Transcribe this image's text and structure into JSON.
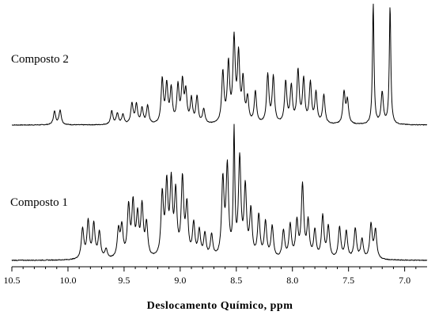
{
  "chart_data": {
    "type": "line",
    "title": "",
    "xlabel": "Deslocamento Químico, ppm",
    "ylabel": "",
    "xlim": [
      10.5,
      6.8
    ],
    "x_reversed": true,
    "grid": false,
    "x_ticks": [
      {
        "value": 10.5,
        "label": "10.5"
      },
      {
        "value": 10.0,
        "label": "10.0"
      },
      {
        "value": 9.5,
        "label": "9.5"
      },
      {
        "value": 9.0,
        "label": "9.0"
      },
      {
        "value": 8.5,
        "label": "8.5"
      },
      {
        "value": 8.0,
        "label": "8.0"
      },
      {
        "value": 7.5,
        "label": "7.5"
      },
      {
        "value": 7.0,
        "label": "7.0"
      }
    ],
    "series": [
      {
        "name": "Composto 2",
        "peaks": [
          [
            10.12,
            0.11
          ],
          [
            10.07,
            0.12
          ],
          [
            9.61,
            0.11
          ],
          [
            9.56,
            0.09
          ],
          [
            9.51,
            0.08
          ],
          [
            9.43,
            0.17
          ],
          [
            9.39,
            0.16
          ],
          [
            9.34,
            0.13
          ],
          [
            9.29,
            0.15
          ],
          [
            9.16,
            0.36
          ],
          [
            9.12,
            0.31
          ],
          [
            9.08,
            0.28
          ],
          [
            9.02,
            0.3
          ],
          [
            8.98,
            0.33
          ],
          [
            8.95,
            0.25
          ],
          [
            8.9,
            0.2
          ],
          [
            8.85,
            0.22
          ],
          [
            8.79,
            0.12
          ],
          [
            8.62,
            0.42
          ],
          [
            8.57,
            0.48
          ],
          [
            8.52,
            0.68
          ],
          [
            8.48,
            0.54
          ],
          [
            8.44,
            0.34
          ],
          [
            8.4,
            0.2
          ],
          [
            8.33,
            0.26
          ],
          [
            8.22,
            0.4
          ],
          [
            8.17,
            0.38
          ],
          [
            8.06,
            0.34
          ],
          [
            8.01,
            0.3
          ],
          [
            7.95,
            0.43
          ],
          [
            7.9,
            0.36
          ],
          [
            7.84,
            0.33
          ],
          [
            7.79,
            0.25
          ],
          [
            7.72,
            0.24
          ],
          [
            7.54,
            0.26
          ],
          [
            7.51,
            0.19
          ],
          [
            7.28,
            1.0
          ],
          [
            7.2,
            0.26
          ],
          [
            7.13,
            0.98
          ]
        ]
      },
      {
        "name": "Composto 1",
        "peaks": [
          [
            9.87,
            0.23
          ],
          [
            9.82,
            0.28
          ],
          [
            9.77,
            0.26
          ],
          [
            9.72,
            0.2
          ],
          [
            9.66,
            0.07
          ],
          [
            9.55,
            0.21
          ],
          [
            9.52,
            0.23
          ],
          [
            9.46,
            0.38
          ],
          [
            9.42,
            0.4
          ],
          [
            9.38,
            0.3
          ],
          [
            9.34,
            0.38
          ],
          [
            9.3,
            0.25
          ],
          [
            9.16,
            0.47
          ],
          [
            9.12,
            0.53
          ],
          [
            9.08,
            0.54
          ],
          [
            9.04,
            0.47
          ],
          [
            8.98,
            0.58
          ],
          [
            8.94,
            0.38
          ],
          [
            8.88,
            0.25
          ],
          [
            8.83,
            0.2
          ],
          [
            8.78,
            0.18
          ],
          [
            8.72,
            0.17
          ],
          [
            8.62,
            0.58
          ],
          [
            8.58,
            0.67
          ],
          [
            8.52,
            0.93
          ],
          [
            8.47,
            0.74
          ],
          [
            8.42,
            0.52
          ],
          [
            8.37,
            0.35
          ],
          [
            8.3,
            0.32
          ],
          [
            8.24,
            0.27
          ],
          [
            8.18,
            0.24
          ],
          [
            8.08,
            0.21
          ],
          [
            8.02,
            0.25
          ],
          [
            7.96,
            0.27
          ],
          [
            7.91,
            0.55
          ],
          [
            7.86,
            0.27
          ],
          [
            7.8,
            0.21
          ],
          [
            7.73,
            0.32
          ],
          [
            7.68,
            0.24
          ],
          [
            7.58,
            0.24
          ],
          [
            7.52,
            0.21
          ],
          [
            7.44,
            0.23
          ],
          [
            7.38,
            0.15
          ],
          [
            7.3,
            0.26
          ],
          [
            7.26,
            0.22
          ]
        ]
      }
    ]
  }
}
